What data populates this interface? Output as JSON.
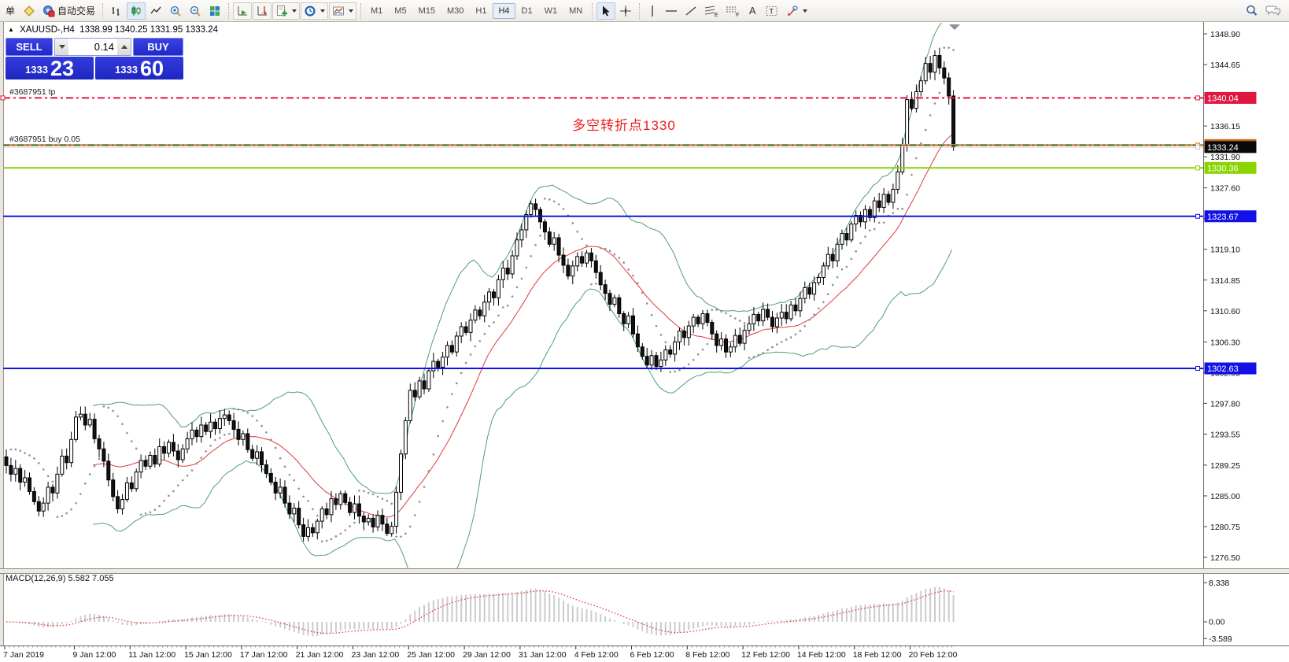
{
  "toolbar": {
    "new_order_label": "单",
    "autotrade_label": "自动交易",
    "timeframes": [
      "M1",
      "M5",
      "M15",
      "M30",
      "H1",
      "H4",
      "D1",
      "W1",
      "MN"
    ],
    "active_timeframe": "H4",
    "text_tool_label": "A",
    "label_tool_label": "T"
  },
  "trade_panel": {
    "sell_label": "SELL",
    "buy_label": "BUY",
    "volume": "0.14",
    "sell_price_small": "1333",
    "sell_price_big": "23",
    "buy_price_small": "1333",
    "buy_price_big": "60"
  },
  "chart": {
    "title_symbol": "XAUUSD-,H4",
    "title_ohlc": "1338.99 1340.25 1331.95 1333.24",
    "order_labels": [
      {
        "text": "#3687951 tp"
      },
      {
        "text": "#3687951 buy 0.05"
      }
    ],
    "annotation": {
      "text": "多空转折点1330",
      "color": "#ee1c1c"
    }
  },
  "chart_data": {
    "type": "candlestick",
    "symbol": "XAUUSD-",
    "timeframe": "H4",
    "first_open": 1290.4,
    "closes": [
      1289.2,
      1288.0,
      1288.8,
      1286.9,
      1287.5,
      1285.6,
      1284.2,
      1282.9,
      1284.0,
      1286.2,
      1285.4,
      1288.0,
      1290.5,
      1289.6,
      1292.8,
      1295.9,
      1296.3,
      1294.8,
      1295.6,
      1292.9,
      1291.5,
      1289.8,
      1287.2,
      1284.9,
      1283.2,
      1284.5,
      1286.8,
      1286.0,
      1288.3,
      1289.9,
      1289.1,
      1290.6,
      1289.4,
      1291.8,
      1290.9,
      1292.4,
      1291.2,
      1290.0,
      1291.5,
      1292.9,
      1294.1,
      1293.2,
      1294.8,
      1293.9,
      1295.2,
      1294.3,
      1295.7,
      1296.2,
      1295.4,
      1294.2,
      1292.8,
      1293.6,
      1291.4,
      1290.2,
      1291.1,
      1289.3,
      1288.1,
      1286.9,
      1285.4,
      1286.2,
      1284.0,
      1282.5,
      1283.3,
      1281.0,
      1279.4,
      1280.6,
      1279.9,
      1281.5,
      1283.2,
      1282.4,
      1284.6,
      1283.8,
      1285.3,
      1284.1,
      1282.7,
      1283.9,
      1282.2,
      1281.4,
      1281.9,
      1280.7,
      1282.3,
      1281.1,
      1279.8,
      1280.8,
      1285.5,
      1290.8,
      1295.4,
      1299.6,
      1298.7,
      1300.9,
      1299.8,
      1302.3,
      1303.6,
      1302.8,
      1304.2,
      1305.8,
      1304.9,
      1307.1,
      1308.4,
      1307.6,
      1309.3,
      1310.7,
      1309.9,
      1311.8,
      1313.2,
      1312.4,
      1314.9,
      1316.5,
      1315.7,
      1318.2,
      1320.4,
      1321.8,
      1323.9,
      1325.4,
      1324.6,
      1322.9,
      1321.5,
      1319.8,
      1320.7,
      1318.3,
      1316.9,
      1315.4,
      1316.8,
      1318.1,
      1317.2,
      1318.6,
      1317.5,
      1315.9,
      1314.2,
      1313.0,
      1311.5,
      1312.4,
      1310.2,
      1308.8,
      1309.9,
      1307.4,
      1305.6,
      1304.3,
      1303.1,
      1304.4,
      1302.9,
      1303.8,
      1305.2,
      1304.6,
      1306.3,
      1307.8,
      1306.9,
      1308.5,
      1309.7,
      1308.8,
      1310.2,
      1309.0,
      1307.4,
      1305.8,
      1306.7,
      1304.9,
      1305.6,
      1307.2,
      1306.1,
      1307.9,
      1308.8,
      1310.1,
      1309.2,
      1310.8,
      1309.7,
      1308.4,
      1309.6,
      1310.4,
      1309.5,
      1311.4,
      1310.6,
      1312.3,
      1313.8,
      1312.9,
      1314.5,
      1315.2,
      1316.8,
      1318.4,
      1317.5,
      1319.8,
      1321.3,
      1320.4,
      1322.6,
      1323.8,
      1322.9,
      1324.6,
      1323.5,
      1325.8,
      1324.9,
      1326.7,
      1325.6,
      1327.4,
      1329.8,
      1333.5,
      1339.8,
      1338.6,
      1340.9,
      1342.4,
      1344.8,
      1343.6,
      1345.9,
      1344.2,
      1342.8,
      1340.3,
      1333.24
    ],
    "price_ticks": [
      1348.9,
      1344.65,
      1340.4,
      1336.15,
      1331.9,
      1327.6,
      1323.35,
      1319.1,
      1314.85,
      1310.6,
      1306.3,
      1302.05,
      1297.8,
      1293.55,
      1289.25,
      1285.0,
      1280.75,
      1276.5
    ],
    "x_labels": [
      "7 Jan 2019",
      "9 Jan 12:00",
      "11 Jan 12:00",
      "15 Jan 12:00",
      "17 Jan 12:00",
      "21 Jan 12:00",
      "23 Jan 12:00",
      "25 Jan 12:00",
      "29 Jan 12:00",
      "31 Jan 12:00",
      "4 Feb 12:00",
      "6 Feb 12:00",
      "8 Feb 12:00",
      "12 Feb 12:00",
      "14 Feb 12:00",
      "18 Feb 12:00",
      "20 Feb 12:00"
    ],
    "levels": [
      {
        "role": "take-profit-line",
        "price": 1340.04,
        "color": "#e01840",
        "style": "dashdot",
        "width": 2,
        "badge": "#e01840",
        "label": "1340.04"
      },
      {
        "role": "ask-line",
        "price": 1333.6,
        "color": "#f2b2a8",
        "style": "solid",
        "width": 1,
        "badge": null,
        "label": null
      },
      {
        "role": "order-open-line",
        "price": 1333.51,
        "color": "#cc6a12",
        "style": "dashdot",
        "width": 1.6,
        "badge": "#c06010",
        "label": "1333.51"
      },
      {
        "role": "bid-line",
        "price": 1333.24,
        "color": "#c8c1bb",
        "style": "solid",
        "width": 1,
        "badge": "#0a0a0a",
        "label": "1333.24"
      },
      {
        "role": "horizontal-line-1330",
        "price": 1330.36,
        "color": "#8ad400",
        "style": "solid",
        "width": 2,
        "badge": "#8ad400",
        "label": "1330.36"
      },
      {
        "role": "horizontal-line-1323",
        "price": 1323.67,
        "color": "#1212e6",
        "style": "solid",
        "width": 2,
        "badge": "#1212e6",
        "label": "1323.67"
      },
      {
        "role": "horizontal-line-1302",
        "price": 1302.63,
        "color": "#1212e6",
        "style": "solid",
        "width": 2,
        "badge": "#1212e6",
        "label": "1302.63"
      }
    ],
    "indicators": {
      "bollinger": {
        "period": 20,
        "deviation": 2,
        "band_color": "#4fa06e",
        "mid_color": "#e03a3a"
      },
      "psar": {
        "step": 0.02,
        "max": 0.2,
        "color": "#8f8f8f"
      },
      "macd": {
        "label": "MACD(12,26,9) 5.582 7.055",
        "params": [
          12,
          26,
          9
        ],
        "value": 5.582,
        "signal": 7.055,
        "tick_labels": [
          "8.338",
          "0.00",
          "-3.589"
        ],
        "tick_values": [
          8.338,
          0,
          -3.589
        ],
        "bar_color": "#cbcbcb",
        "signal_color": "#e03a3a"
      }
    }
  }
}
